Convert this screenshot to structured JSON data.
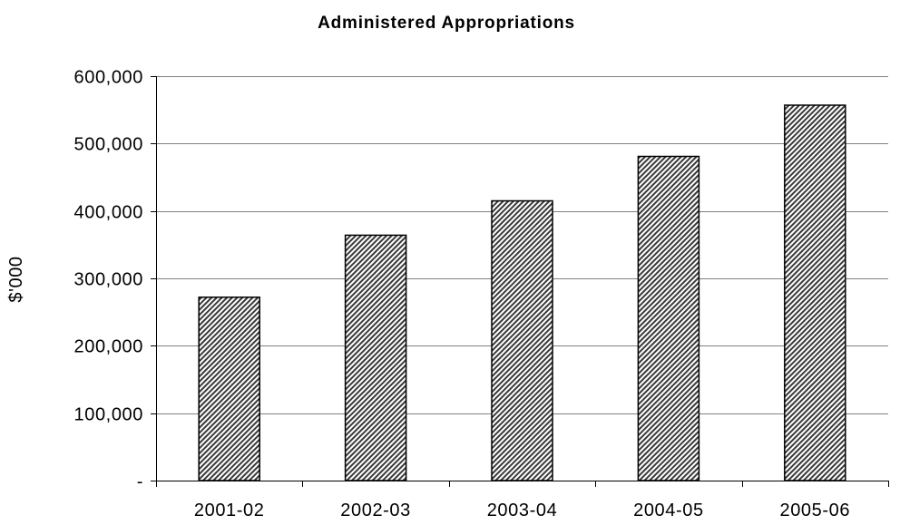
{
  "chart_data": {
    "type": "bar",
    "title": "Administered Appropriations",
    "xlabel": "",
    "ylabel": "$'000",
    "categories": [
      "2001-02",
      "2002-03",
      "2003-04",
      "2004-05",
      "2005-06"
    ],
    "values": [
      272000,
      364000,
      415000,
      481000,
      557000
    ],
    "ylim": [
      0,
      600000
    ],
    "yticks": [
      0,
      100000,
      200000,
      300000,
      400000,
      500000,
      600000
    ],
    "ytick_labels": [
      "-",
      "100,000",
      "200,000",
      "300,000",
      "400,000",
      "500,000",
      "600,000"
    ],
    "grid": true,
    "bar_fill": "diagonal-hatch",
    "bar_color": "#000000"
  }
}
